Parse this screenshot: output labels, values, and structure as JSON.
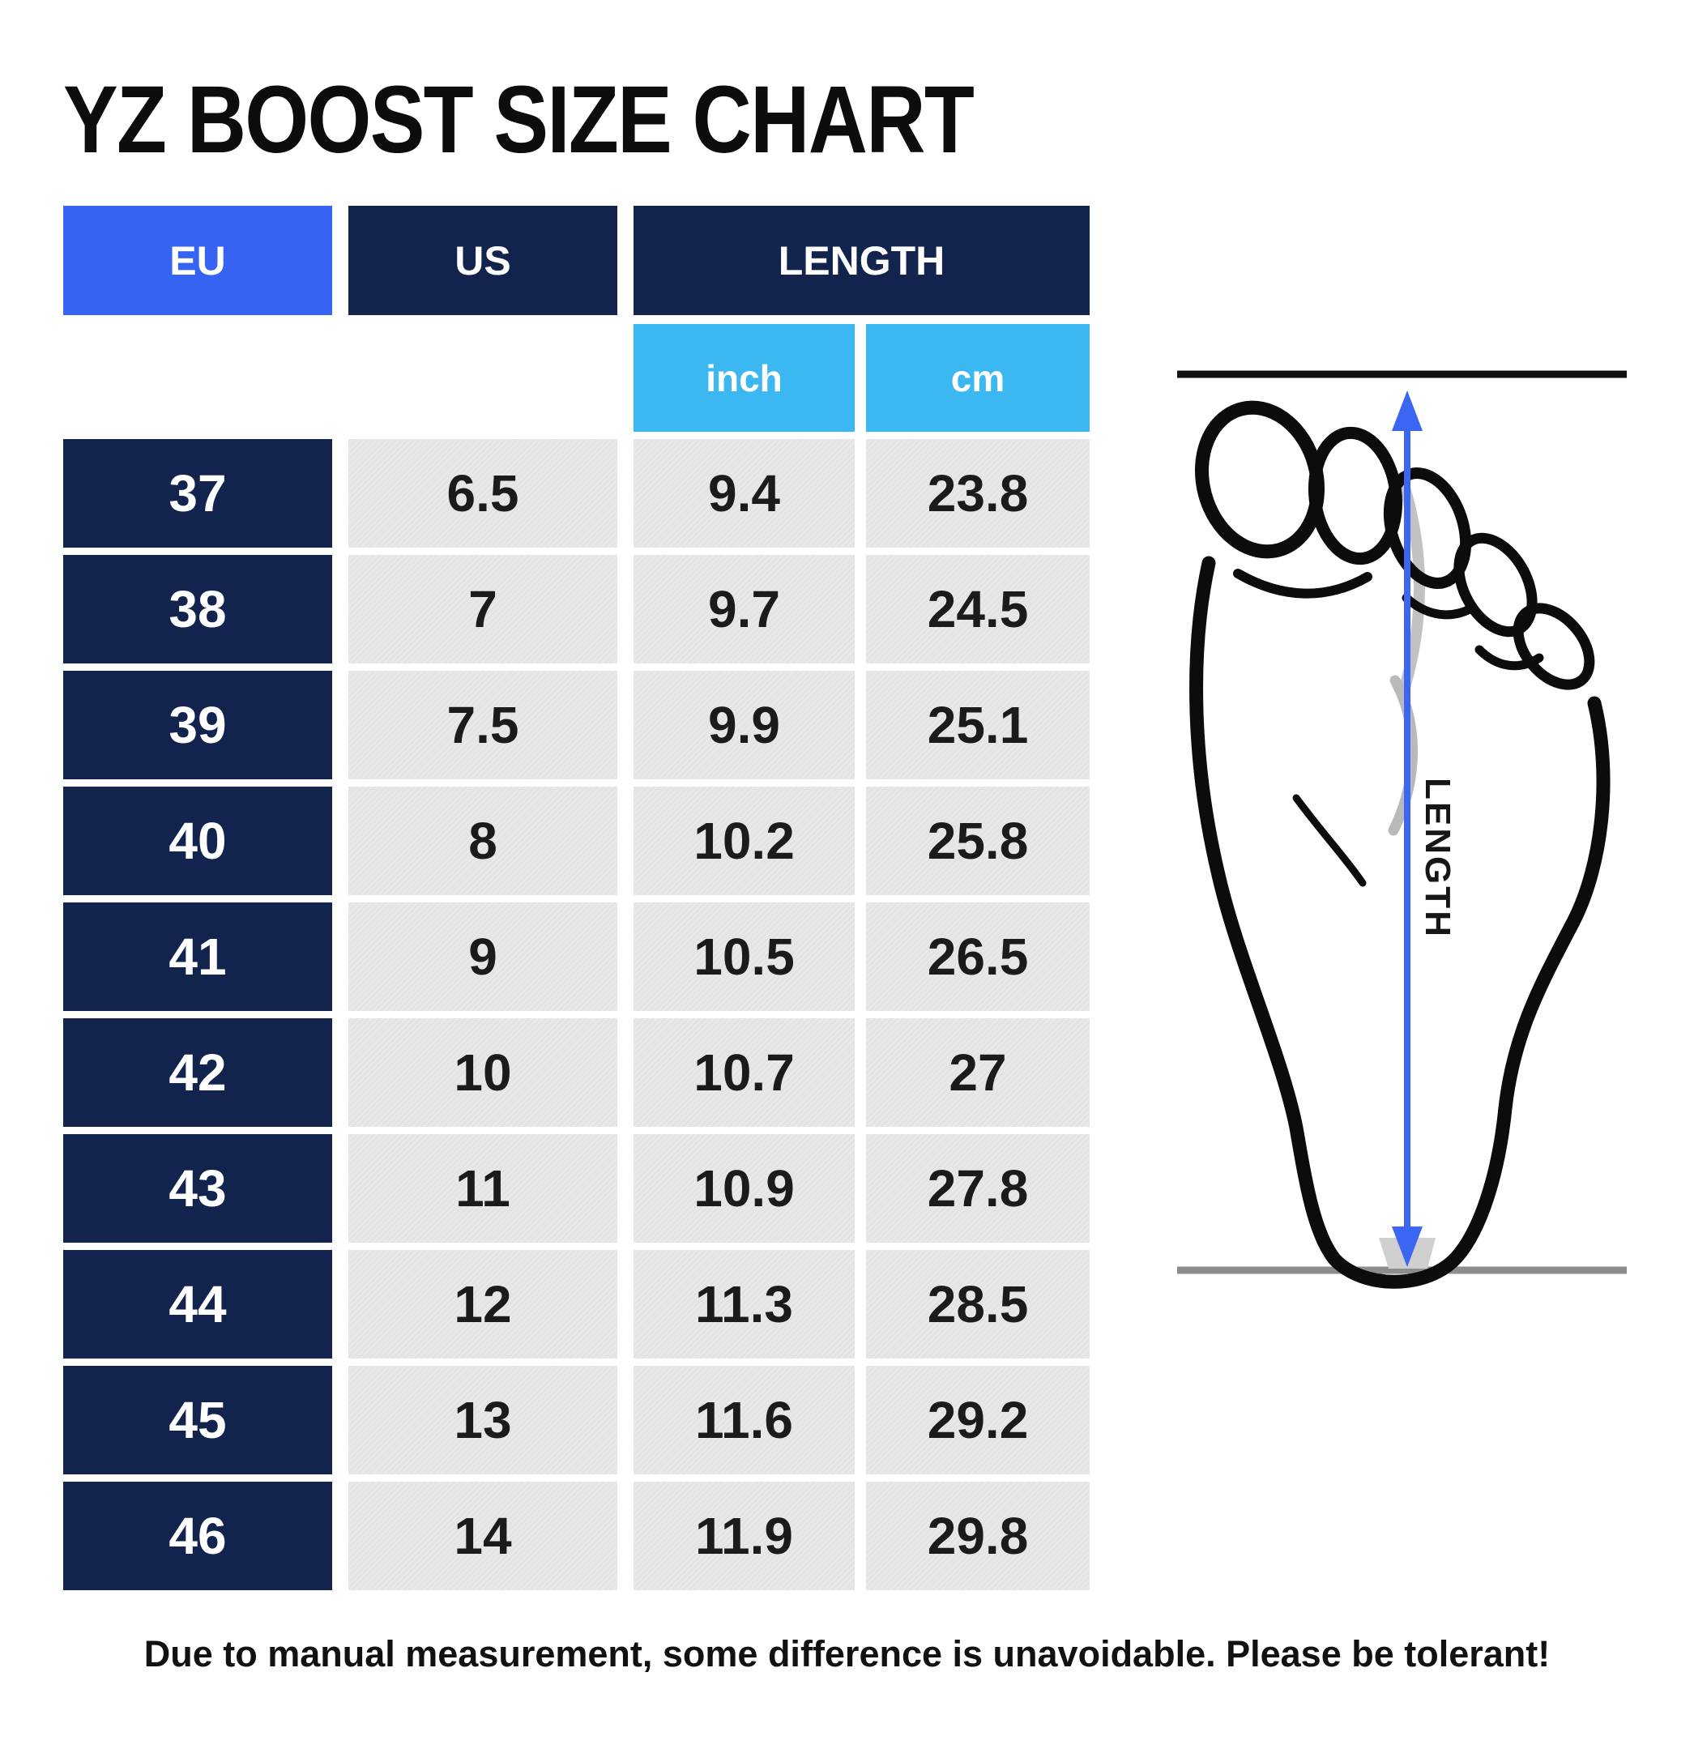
{
  "title": "YZ BOOST SIZE CHART",
  "table": {
    "headers": {
      "eu": "EU",
      "us": "US",
      "length": "LENGTH"
    },
    "subheaders": {
      "inch": "inch",
      "cm": "cm"
    },
    "rows": [
      {
        "eu": "37",
        "us": "6.5",
        "inch": "9.4",
        "cm": "23.8"
      },
      {
        "eu": "38",
        "us": "7",
        "inch": "9.7",
        "cm": "24.5"
      },
      {
        "eu": "39",
        "us": "7.5",
        "inch": "9.9",
        "cm": "25.1"
      },
      {
        "eu": "40",
        "us": "8",
        "inch": "10.2",
        "cm": "25.8"
      },
      {
        "eu": "41",
        "us": "9",
        "inch": "10.5",
        "cm": "26.5"
      },
      {
        "eu": "42",
        "us": "10",
        "inch": "10.7",
        "cm": "27"
      },
      {
        "eu": "43",
        "us": "11",
        "inch": "10.9",
        "cm": "27.8"
      },
      {
        "eu": "44",
        "us": "12",
        "inch": "11.3",
        "cm": "28.5"
      },
      {
        "eu": "45",
        "us": "13",
        "inch": "11.6",
        "cm": "29.2"
      },
      {
        "eu": "46",
        "us": "14",
        "inch": "11.9",
        "cm": "29.8"
      }
    ]
  },
  "diagram": {
    "label": "LENGTH"
  },
  "footer": "Due to manual measurement, some difference is unavoidable. Please be tolerant!",
  "colors": {
    "eu_header_blue": "#3763f3",
    "navy": "#12234e",
    "light_blue": "#3bb8f1",
    "cell_gray": "#e4e4e4",
    "arrow_blue": "#3a66f2"
  },
  "chart_data": {
    "type": "table",
    "title": "YZ BOOST SIZE CHART",
    "columns": [
      "EU",
      "US",
      "LENGTH (inch)",
      "LENGTH (cm)"
    ],
    "rows": [
      [
        37,
        6.5,
        9.4,
        23.8
      ],
      [
        38,
        7,
        9.7,
        24.5
      ],
      [
        39,
        7.5,
        9.9,
        25.1
      ],
      [
        40,
        8,
        10.2,
        25.8
      ],
      [
        41,
        9,
        10.5,
        26.5
      ],
      [
        42,
        10,
        10.7,
        27
      ],
      [
        43,
        11,
        10.9,
        27.8
      ],
      [
        44,
        12,
        11.3,
        28.5
      ],
      [
        45,
        13,
        11.6,
        29.2
      ],
      [
        46,
        14,
        11.9,
        29.8
      ]
    ],
    "footnote": "Due to manual measurement, some difference is unavoidable. Please be tolerant!"
  }
}
